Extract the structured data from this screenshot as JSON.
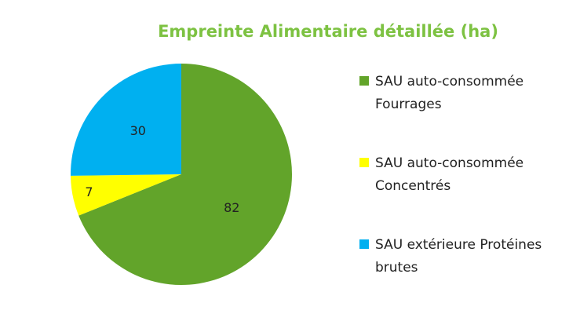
{
  "chart_data": {
    "type": "pie",
    "title": "Empreinte Alimentaire détaillée (ha)",
    "categories": [
      "SAU auto-consommée Fourrages",
      "SAU auto-consommée Concentrés",
      "SAU extérieure Protéines brutes"
    ],
    "values": [
      82,
      7,
      30
    ],
    "colors": [
      "#62a42a",
      "#ffff00",
      "#00b0f0"
    ]
  }
}
